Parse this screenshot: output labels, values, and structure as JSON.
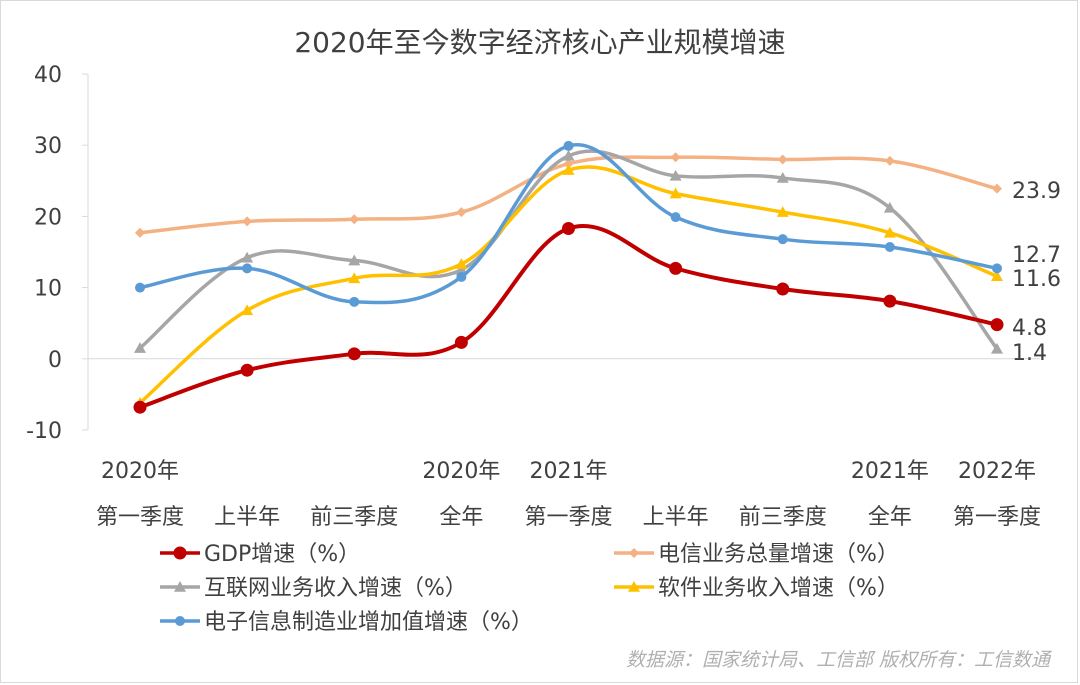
{
  "chart_data": {
    "type": "line",
    "title": "2020年至今数字经济核心产业规模增速",
    "ylim": [
      -10,
      40
    ],
    "yticks": [
      -10,
      0,
      10,
      20,
      30,
      40
    ],
    "grid": false,
    "legend_position": "bottom",
    "categories": [
      [
        "2020年",
        "第一季度"
      ],
      [
        "",
        "上半年"
      ],
      [
        "",
        "前三季度"
      ],
      [
        "2020年",
        "全年"
      ],
      [
        "2021年",
        "第一季度"
      ],
      [
        "",
        "上半年"
      ],
      [
        "",
        "前三季度"
      ],
      [
        "2021年",
        "全年"
      ],
      [
        "2022年",
        "第一季度"
      ]
    ],
    "series": [
      {
        "name": "GDP增速（%）",
        "color": "#c00000",
        "marker": "circle",
        "markerSize": 6.5,
        "values": [
          -6.8,
          -1.6,
          0.7,
          2.3,
          18.3,
          12.7,
          9.8,
          8.1,
          4.8
        ],
        "endLabel": "4.8"
      },
      {
        "name": "电信业务总量增速（%）",
        "color": "#f4b183",
        "marker": "diamond",
        "markerSize": 5,
        "values": [
          17.7,
          19.3,
          19.6,
          20.6,
          27.4,
          28.3,
          28.0,
          27.8,
          23.9
        ],
        "endLabel": "23.9"
      },
      {
        "name": "互联网业务收入增速（%）",
        "color": "#a6a6a6",
        "marker": "triangle",
        "markerSize": 6,
        "values": [
          1.5,
          14.2,
          13.8,
          12.5,
          28.5,
          25.7,
          25.4,
          21.2,
          1.4
        ],
        "endLabel": "1.4"
      },
      {
        "name": "软件业务收入增速（%）",
        "color": "#ffc000",
        "marker": "triangle",
        "markerSize": 6,
        "values": [
          -6.2,
          6.8,
          11.3,
          13.3,
          26.5,
          23.2,
          20.6,
          17.7,
          11.6
        ],
        "endLabel": "11.6"
      },
      {
        "name": "电子信息制造业增加值增速（%）",
        "color": "#5b9bd5",
        "marker": "circle",
        "markerSize": 5,
        "values": [
          10.0,
          12.7,
          8.0,
          11.5,
          29.9,
          19.9,
          16.8,
          15.7,
          12.7
        ],
        "endLabel": "12.7"
      }
    ],
    "source": "数据源：国家统计局、工信部  版权所有：工信数通"
  }
}
